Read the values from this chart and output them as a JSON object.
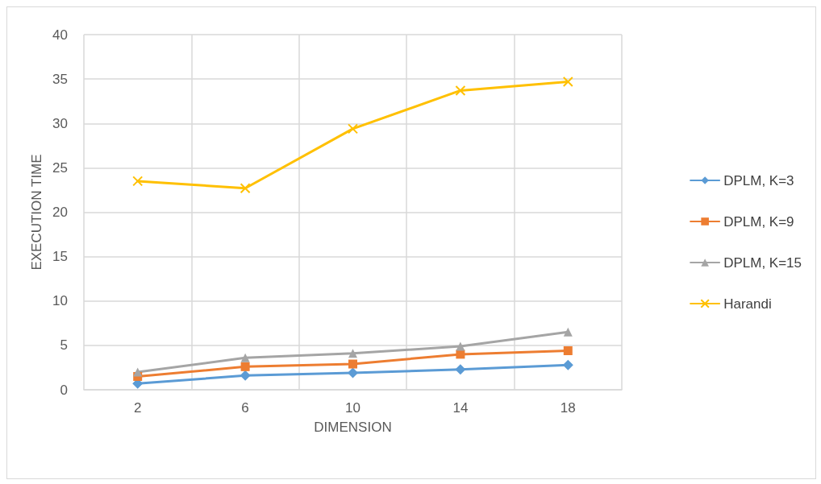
{
  "chart_data": {
    "type": "line",
    "xlabel": "DIMENSION",
    "ylabel": "EXECUTION TIME",
    "categories": [
      "2",
      "6",
      "10",
      "14",
      "18"
    ],
    "series": [
      {
        "name": "DPLM, K=3",
        "color": "#5b9bd5",
        "marker": "diamond",
        "values": [
          0.7,
          1.6,
          1.9,
          2.3,
          2.8
        ]
      },
      {
        "name": "DPLM, K=9",
        "color": "#ed7d31",
        "marker": "square",
        "values": [
          1.5,
          2.6,
          2.9,
          4.0,
          4.4
        ]
      },
      {
        "name": "DPLM, K=15",
        "color": "#a5a5a5",
        "marker": "triangle",
        "values": [
          2.0,
          3.6,
          4.1,
          4.9,
          6.5
        ]
      },
      {
        "name": "Harandi",
        "color": "#ffc000",
        "marker": "cross",
        "values": [
          23.5,
          22.7,
          29.4,
          33.7,
          34.7
        ]
      }
    ],
    "ylim": [
      0,
      40
    ],
    "yticks": [
      0,
      5,
      10,
      15,
      20,
      25,
      30,
      35,
      40
    ],
    "grid": true,
    "legend": "right"
  }
}
